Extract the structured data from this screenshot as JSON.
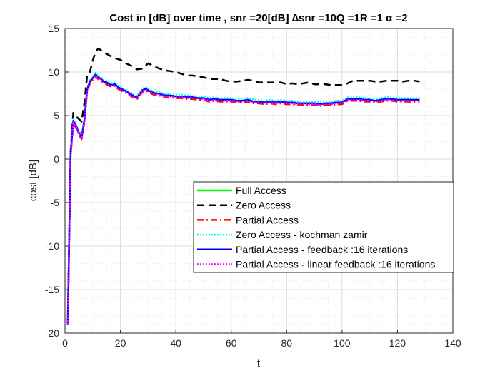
{
  "chart_data": {
    "type": "line",
    "title": "Cost in [dB] over time , snr =20[dB] ∆snr =10Q =1R =1 α =2",
    "xlabel": "t",
    "ylabel": "cost [dB]",
    "xlim": [
      0,
      140
    ],
    "ylim": [
      -20,
      15
    ],
    "xticks": [
      0,
      20,
      40,
      60,
      80,
      100,
      120,
      140
    ],
    "yticks": [
      -20,
      -15,
      -10,
      -5,
      0,
      5,
      10,
      15
    ],
    "grid": true,
    "minor_grid": true,
    "legend_position": "center-right",
    "series": [
      {
        "name": "Full Access",
        "color": "#00ff00",
        "style": "solid",
        "x": [
          1,
          2,
          3,
          4,
          5,
          6,
          7,
          8,
          9,
          10,
          11,
          12,
          13,
          14,
          15,
          16,
          17,
          18,
          19,
          20,
          22,
          24,
          25,
          26,
          27,
          28,
          29,
          30,
          32,
          34,
          36,
          38,
          40,
          42,
          44,
          46,
          48,
          50,
          52,
          54,
          56,
          58,
          60,
          62,
          64,
          66,
          68,
          70,
          72,
          74,
          76,
          78,
          80,
          82,
          84,
          86,
          88,
          90,
          92,
          94,
          96,
          98,
          100,
          102,
          104,
          106,
          108,
          110,
          112,
          114,
          116,
          118,
          120,
          122,
          124,
          126,
          128
        ],
        "y": [
          -19,
          0.5,
          4.4,
          3.8,
          3.0,
          2.5,
          4.5,
          8.0,
          8.9,
          9.3,
          9.7,
          9.4,
          9.2,
          8.9,
          8.8,
          8.6,
          8.5,
          8.6,
          8.3,
          8.1,
          7.8,
          7.4,
          7.2,
          7.1,
          7.5,
          7.9,
          8.1,
          7.9,
          7.6,
          7.5,
          7.3,
          7.3,
          7.2,
          7.2,
          7.1,
          7.1,
          7.0,
          7.0,
          6.8,
          6.9,
          6.8,
          6.8,
          6.8,
          6.7,
          6.7,
          6.8,
          6.6,
          6.6,
          6.5,
          6.6,
          6.5,
          6.6,
          6.5,
          6.5,
          6.4,
          6.4,
          6.4,
          6.4,
          6.3,
          6.4,
          6.4,
          6.5,
          6.5,
          6.9,
          6.9,
          6.9,
          6.8,
          6.8,
          6.7,
          6.8,
          6.9,
          6.9,
          6.8,
          6.8,
          6.8,
          6.8,
          6.8
        ]
      },
      {
        "name": "Zero Access",
        "color": "#000000",
        "style": "dashed",
        "x": [
          1,
          2,
          3,
          4,
          5,
          6,
          7,
          8,
          9,
          10,
          11,
          12,
          14,
          16,
          18,
          20,
          22,
          24,
          26,
          28,
          30,
          32,
          34,
          36,
          38,
          40,
          42,
          44,
          46,
          48,
          50,
          52,
          54,
          56,
          58,
          60,
          62,
          64,
          66,
          68,
          70,
          72,
          74,
          76,
          78,
          80,
          82,
          84,
          86,
          88,
          90,
          92,
          94,
          96,
          98,
          100,
          102,
          104,
          106,
          108,
          110,
          112,
          114,
          116,
          118,
          120,
          122,
          124,
          126,
          128
        ],
        "y": [
          -19,
          0.8,
          5.3,
          4.9,
          4.6,
          4.3,
          6.5,
          9.6,
          10.0,
          11.3,
          12.3,
          12.7,
          12.3,
          11.9,
          11.6,
          11.4,
          11.0,
          10.7,
          10.3,
          10.4,
          11.0,
          10.7,
          10.4,
          10.2,
          10.1,
          10.0,
          9.8,
          9.6,
          9.6,
          9.5,
          9.4,
          9.2,
          9.2,
          9.2,
          9.0,
          8.9,
          8.9,
          9.0,
          9.1,
          9.0,
          8.8,
          8.8,
          8.8,
          8.8,
          8.8,
          8.6,
          8.7,
          8.6,
          8.7,
          8.8,
          8.6,
          8.6,
          8.6,
          8.5,
          8.5,
          8.5,
          8.7,
          9.0,
          9.0,
          9.0,
          9.0,
          8.9,
          8.9,
          9.0,
          9.0,
          9.0,
          8.9,
          9.0,
          9.0,
          8.9
        ]
      },
      {
        "name": "Partial Access",
        "color": "#ff0000",
        "style": "dashdot",
        "x": [
          1,
          2,
          3,
          4,
          5,
          6,
          7,
          8,
          9,
          10,
          11,
          12,
          13,
          14,
          15,
          16,
          17,
          18,
          19,
          20,
          22,
          24,
          25,
          26,
          27,
          28,
          29,
          30,
          32,
          34,
          36,
          38,
          40,
          42,
          44,
          46,
          48,
          50,
          52,
          54,
          56,
          58,
          60,
          62,
          64,
          66,
          68,
          70,
          72,
          74,
          76,
          78,
          80,
          82,
          84,
          86,
          88,
          90,
          92,
          94,
          96,
          98,
          100,
          102,
          104,
          106,
          108,
          110,
          112,
          114,
          116,
          118,
          120,
          122,
          124,
          126,
          128
        ],
        "y": [
          -19,
          0.2,
          4.2,
          3.6,
          2.8,
          2.3,
          4.3,
          7.8,
          8.7,
          9.1,
          9.5,
          9.2,
          9.0,
          8.7,
          8.6,
          8.4,
          8.3,
          8.4,
          8.1,
          7.9,
          7.6,
          7.2,
          7.0,
          6.9,
          7.3,
          7.7,
          7.9,
          7.7,
          7.4,
          7.3,
          7.1,
          7.1,
          7.0,
          7.0,
          6.9,
          6.9,
          6.8,
          6.8,
          6.6,
          6.7,
          6.6,
          6.6,
          6.6,
          6.5,
          6.5,
          6.6,
          6.4,
          6.4,
          6.3,
          6.4,
          6.3,
          6.4,
          6.3,
          6.3,
          6.2,
          6.2,
          6.2,
          6.2,
          6.1,
          6.2,
          6.2,
          6.3,
          6.3,
          6.7,
          6.7,
          6.7,
          6.6,
          6.6,
          6.5,
          6.6,
          6.7,
          6.7,
          6.6,
          6.6,
          6.6,
          6.6,
          6.6
        ]
      },
      {
        "name": "Zero Access - kochman zamir",
        "color": "#00ffff",
        "style": "dotted",
        "x": [
          1,
          2,
          3,
          4,
          5,
          6,
          7,
          8,
          9,
          10,
          11,
          12,
          13,
          14,
          15,
          16,
          17,
          18,
          19,
          20,
          22,
          24,
          25,
          26,
          27,
          28,
          29,
          30,
          32,
          34,
          36,
          38,
          40,
          42,
          44,
          46,
          48,
          50,
          52,
          54,
          56,
          58,
          60,
          62,
          64,
          66,
          68,
          70,
          72,
          74,
          76,
          78,
          80,
          82,
          84,
          86,
          88,
          90,
          92,
          94,
          96,
          98,
          100,
          102,
          104,
          106,
          108,
          110,
          112,
          114,
          116,
          118,
          120,
          122,
          124,
          126,
          128
        ],
        "y": [
          -19,
          0.6,
          4.6,
          4.0,
          3.2,
          2.7,
          4.7,
          8.2,
          9.1,
          9.5,
          9.9,
          9.6,
          9.4,
          9.1,
          9.0,
          8.8,
          8.7,
          8.8,
          8.5,
          8.3,
          8.0,
          7.6,
          7.4,
          7.3,
          7.7,
          8.1,
          8.3,
          8.1,
          7.8,
          7.7,
          7.5,
          7.5,
          7.4,
          7.4,
          7.3,
          7.3,
          7.2,
          7.2,
          7.0,
          7.1,
          7.0,
          7.0,
          7.0,
          6.9,
          6.9,
          7.0,
          6.8,
          6.8,
          6.7,
          6.8,
          6.7,
          6.8,
          6.7,
          6.7,
          6.6,
          6.6,
          6.6,
          6.6,
          6.5,
          6.6,
          6.6,
          6.7,
          6.7,
          7.1,
          7.1,
          7.1,
          7.0,
          7.0,
          6.9,
          7.0,
          7.1,
          7.1,
          7.0,
          7.0,
          7.0,
          7.0,
          7.0
        ]
      },
      {
        "name": "Partial Access - feedback :16 iterations",
        "color": "#0000ff",
        "style": "solid",
        "x": [
          1,
          2,
          3,
          4,
          5,
          6,
          7,
          8,
          9,
          10,
          11,
          12,
          13,
          14,
          15,
          16,
          17,
          18,
          19,
          20,
          22,
          24,
          25,
          26,
          27,
          28,
          29,
          30,
          32,
          34,
          36,
          38,
          40,
          42,
          44,
          46,
          48,
          50,
          52,
          54,
          56,
          58,
          60,
          62,
          64,
          66,
          68,
          70,
          72,
          74,
          76,
          78,
          80,
          82,
          84,
          86,
          88,
          90,
          92,
          94,
          96,
          98,
          100,
          102,
          104,
          106,
          108,
          110,
          112,
          114,
          116,
          118,
          120,
          122,
          124,
          126,
          128
        ],
        "y": [
          -19,
          0.5,
          4.4,
          3.8,
          3.0,
          2.5,
          4.5,
          8.0,
          8.9,
          9.3,
          9.7,
          9.4,
          9.2,
          8.9,
          8.8,
          8.6,
          8.5,
          8.6,
          8.3,
          8.1,
          7.8,
          7.4,
          7.2,
          7.1,
          7.5,
          7.9,
          8.1,
          7.9,
          7.6,
          7.5,
          7.3,
          7.3,
          7.2,
          7.2,
          7.1,
          7.1,
          7.0,
          7.0,
          6.8,
          6.9,
          6.8,
          6.8,
          6.8,
          6.7,
          6.7,
          6.8,
          6.6,
          6.6,
          6.5,
          6.6,
          6.5,
          6.6,
          6.5,
          6.5,
          6.4,
          6.4,
          6.4,
          6.4,
          6.3,
          6.4,
          6.4,
          6.5,
          6.5,
          6.9,
          6.9,
          6.9,
          6.8,
          6.8,
          6.7,
          6.8,
          6.9,
          6.9,
          6.8,
          6.8,
          6.8,
          6.8,
          6.8
        ]
      },
      {
        "name": "Partial Access - linear feedback :16 iterations",
        "color": "#ff00ff",
        "style": "dotted",
        "x": [
          1,
          2,
          3,
          4,
          5,
          6,
          7,
          8,
          9,
          10,
          11,
          12,
          13,
          14,
          15,
          16,
          17,
          18,
          19,
          20,
          22,
          24,
          25,
          26,
          27,
          28,
          29,
          30,
          32,
          34,
          36,
          38,
          40,
          42,
          44,
          46,
          48,
          50,
          52,
          54,
          56,
          58,
          60,
          62,
          64,
          66,
          68,
          70,
          72,
          74,
          76,
          78,
          80,
          82,
          84,
          86,
          88,
          90,
          92,
          94,
          96,
          98,
          100,
          102,
          104,
          106,
          108,
          110,
          112,
          114,
          116,
          118,
          120,
          122,
          124,
          126,
          128
        ],
        "y": [
          -19,
          0.3,
          4.3,
          3.7,
          2.9,
          2.4,
          4.4,
          7.9,
          8.8,
          9.2,
          9.6,
          9.3,
          9.1,
          8.8,
          8.7,
          8.5,
          8.4,
          8.5,
          8.2,
          8.0,
          7.7,
          7.3,
          7.1,
          7.0,
          7.4,
          7.8,
          8.0,
          7.8,
          7.5,
          7.4,
          7.2,
          7.2,
          7.1,
          7.1,
          7.0,
          7.0,
          6.9,
          6.9,
          6.7,
          6.8,
          6.7,
          6.7,
          6.7,
          6.6,
          6.6,
          6.7,
          6.5,
          6.5,
          6.4,
          6.5,
          6.4,
          6.5,
          6.4,
          6.4,
          6.3,
          6.3,
          6.3,
          6.3,
          6.2,
          6.3,
          6.3,
          6.4,
          6.4,
          6.8,
          6.8,
          6.8,
          6.7,
          6.7,
          6.6,
          6.7,
          6.8,
          6.8,
          6.7,
          6.7,
          6.7,
          6.7,
          6.7
        ]
      }
    ]
  }
}
